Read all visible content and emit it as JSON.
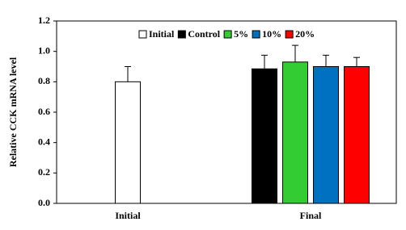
{
  "chart_data": {
    "type": "bar",
    "y_label": "Relative CCK mRNA level",
    "categories": [
      "Initial",
      "Final"
    ],
    "series": [
      {
        "name": "Initial",
        "color": "#ffffff",
        "values": [
          0.8,
          null
        ],
        "errors": [
          0.1,
          null
        ]
      },
      {
        "name": "Control",
        "color": "#000000",
        "values": [
          null,
          0.885
        ],
        "errors": [
          null,
          0.09
        ]
      },
      {
        "name": "5%",
        "color": "#33cc33",
        "values": [
          null,
          0.93
        ],
        "errors": [
          null,
          0.11
        ]
      },
      {
        "name": "10%",
        "color": "#0070c0",
        "values": [
          null,
          0.9
        ],
        "errors": [
          null,
          0.075
        ]
      },
      {
        "name": "20%",
        "color": "#ff0000",
        "values": [
          null,
          0.9
        ],
        "errors": [
          null,
          0.06
        ]
      }
    ],
    "ylim": [
      0,
      1.2
    ],
    "yticks": [
      {
        "value": 0,
        "label": "0.0"
      },
      0.2,
      0.4,
      0.6,
      0.8,
      {
        "value": 1,
        "label": "1.0"
      },
      1.2
    ],
    "legend": "top"
  }
}
